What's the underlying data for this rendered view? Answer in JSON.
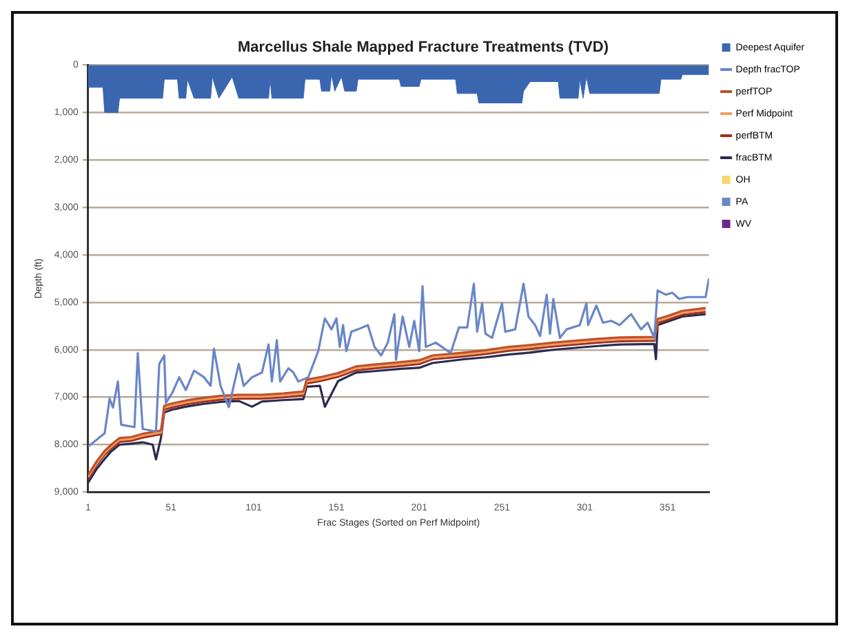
{
  "chart_data": {
    "type": "line",
    "title": "Marcellus Shale Mapped Fracture Treatments (TVD)",
    "xlabel": "Frac Stages (Sorted on Perf Midpoint)",
    "ylabel": "Depth (ft)",
    "xlim": [
      1,
      376
    ],
    "xticks": [
      1,
      51,
      101,
      151,
      201,
      251,
      301,
      351
    ],
    "ylim": [
      9000,
      0
    ],
    "yticks": [
      0,
      {
        "value": 1000,
        "label": "1,000"
      },
      {
        "value": 2000,
        "label": "2,000"
      },
      {
        "value": 3000,
        "label": "3,000"
      },
      {
        "value": 4000,
        "label": "4,000"
      },
      {
        "value": 5000,
        "label": "5,000"
      },
      {
        "value": 6000,
        "label": "6,000"
      },
      {
        "value": 7000,
        "label": "7,000"
      },
      {
        "value": 8000,
        "label": "8,000"
      },
      {
        "value": 9000,
        "label": "9,000"
      }
    ],
    "grid": "y",
    "legend": "right",
    "marker": "none",
    "line_style": "solid",
    "series": [
      {
        "name": "Deepest Aquifer",
        "type": "area",
        "color": "#3a66b0",
        "x": [
          1,
          10,
          11,
          19,
          20,
          46,
          47,
          55,
          56,
          60,
          61,
          65,
          75,
          76,
          80,
          88,
          92,
          110,
          111,
          112,
          131,
          132,
          141,
          142,
          147,
          148,
          150,
          154,
          156,
          163,
          164,
          189,
          190,
          201,
          202,
          223,
          224,
          236,
          237,
          263,
          264,
          268,
          285,
          286,
          297,
          298,
          300,
          302,
          304,
          346,
          347,
          359,
          360,
          376
        ],
        "values": [
          470,
          470,
          1000,
          1000,
          700,
          700,
          300,
          300,
          700,
          700,
          300,
          700,
          700,
          250,
          700,
          250,
          700,
          700,
          300,
          700,
          700,
          300,
          300,
          550,
          550,
          200,
          550,
          250,
          550,
          550,
          300,
          300,
          450,
          450,
          300,
          300,
          600,
          600,
          800,
          800,
          550,
          350,
          350,
          700,
          700,
          300,
          700,
          250,
          600,
          600,
          300,
          300,
          200,
          200
        ]
      },
      {
        "name": "Depth fracTOP",
        "color": "#6a86c8",
        "x": [
          1,
          11,
          14,
          16,
          19,
          21,
          29,
          31,
          34,
          42,
          44,
          47,
          48,
          52,
          56,
          60,
          65,
          71,
          75,
          77,
          81,
          86,
          92,
          95,
          100,
          106,
          110,
          112,
          115,
          117,
          122,
          125,
          128,
          134,
          140,
          144,
          148,
          151,
          153,
          155,
          157,
          160,
          164,
          170,
          174,
          178,
          182,
          186,
          187,
          191,
          195,
          198,
          201,
          203,
          205,
          211,
          220,
          225,
          230,
          234,
          236,
          239,
          241,
          245,
          251,
          253,
          259,
          264,
          267,
          271,
          274,
          278,
          280,
          282,
          286,
          290,
          298,
          302,
          303,
          308,
          312,
          317,
          322,
          329,
          335,
          339,
          343,
          345,
          350,
          354,
          358,
          363,
          374,
          376
        ],
        "values": [
          8040,
          7760,
          7030,
          7220,
          6670,
          7580,
          7630,
          6070,
          7670,
          7720,
          6300,
          6120,
          7120,
          6900,
          6580,
          6850,
          6440,
          6580,
          6760,
          5980,
          6760,
          7210,
          6300,
          6760,
          6580,
          6480,
          5890,
          6670,
          5800,
          6670,
          6390,
          6480,
          6670,
          6580,
          6030,
          5340,
          5570,
          5340,
          5940,
          5480,
          6030,
          5620,
          5570,
          5480,
          5940,
          6120,
          5850,
          5250,
          6210,
          5300,
          5940,
          5390,
          6030,
          4660,
          5940,
          5850,
          6070,
          5530,
          5530,
          4610,
          5620,
          5020,
          5660,
          5750,
          5020,
          5620,
          5570,
          4610,
          5300,
          5480,
          5710,
          4840,
          5660,
          4930,
          5750,
          5570,
          5480,
          5020,
          5480,
          5070,
          5430,
          5390,
          5480,
          5250,
          5570,
          5430,
          5750,
          4750,
          4840,
          4800,
          4930,
          4890,
          4890,
          4500
        ]
      },
      {
        "name": "perfTOP",
        "color": "#c0502a",
        "x": [
          1,
          6,
          11,
          15,
          20,
          27,
          34,
          42,
          45,
          47,
          52,
          60,
          71,
          81,
          92,
          106,
          119,
          131,
          133,
          141,
          152,
          163,
          174,
          190,
          201,
          209,
          228,
          241,
          255,
          268,
          282,
          295,
          309,
          322,
          343,
          345,
          350,
          360,
          374
        ],
        "values": [
          8640,
          8360,
          8130,
          8000,
          7860,
          7840,
          7770,
          7720,
          7700,
          7180,
          7130,
          7070,
          7010,
          6970,
          6950,
          6950,
          6920,
          6880,
          6630,
          6580,
          6490,
          6350,
          6310,
          6260,
          6220,
          6120,
          6060,
          6010,
          5940,
          5900,
          5850,
          5810,
          5770,
          5740,
          5730,
          5350,
          5300,
          5180,
          5120
        ]
      },
      {
        "name": "Perf Midpoint",
        "color": "#f0a060",
        "x": [
          1,
          6,
          11,
          15,
          20,
          27,
          34,
          42,
          45,
          47,
          52,
          60,
          71,
          81,
          92,
          106,
          119,
          131,
          133,
          141,
          152,
          163,
          174,
          190,
          201,
          209,
          228,
          241,
          255,
          268,
          282,
          295,
          309,
          322,
          343,
          345,
          350,
          360,
          374
        ],
        "values": [
          8680,
          8400,
          8170,
          8040,
          7900,
          7880,
          7810,
          7760,
          7740,
          7220,
          7170,
          7110,
          7050,
          7010,
          6990,
          6990,
          6960,
          6920,
          6670,
          6620,
          6530,
          6390,
          6350,
          6300,
          6260,
          6160,
          6100,
          6050,
          5980,
          5940,
          5890,
          5850,
          5810,
          5780,
          5770,
          5390,
          5340,
          5220,
          5160
        ]
      },
      {
        "name": "perfBTM",
        "color": "#a03020",
        "x": [
          1,
          6,
          11,
          15,
          20,
          27,
          34,
          42,
          45,
          47,
          52,
          60,
          71,
          81,
          92,
          106,
          119,
          131,
          133,
          141,
          152,
          163,
          174,
          190,
          201,
          209,
          228,
          241,
          255,
          268,
          282,
          295,
          309,
          322,
          343,
          345,
          350,
          360,
          374
        ],
        "values": [
          8720,
          8440,
          8210,
          8080,
          7940,
          7920,
          7850,
          7800,
          7780,
          7260,
          7210,
          7150,
          7090,
          7050,
          7030,
          7030,
          7000,
          6960,
          6710,
          6660,
          6570,
          6430,
          6390,
          6340,
          6300,
          6200,
          6140,
          6090,
          6020,
          5980,
          5930,
          5890,
          5850,
          5820,
          5810,
          5430,
          5380,
          5260,
          5200
        ]
      },
      {
        "name": "fracBTM",
        "color": "#2a2a50",
        "x": [
          1,
          6,
          11,
          15,
          20,
          27,
          34,
          40,
          42,
          45,
          47,
          52,
          60,
          71,
          81,
          92,
          100,
          106,
          119,
          131,
          133,
          141,
          144,
          152,
          163,
          174,
          190,
          201,
          209,
          228,
          241,
          255,
          268,
          282,
          295,
          309,
          322,
          343,
          344,
          345,
          350,
          360,
          374
        ],
        "values": [
          8800,
          8520,
          8300,
          8140,
          8000,
          7980,
          7950,
          8000,
          8310,
          7860,
          7320,
          7260,
          7200,
          7140,
          7100,
          7080,
          7200,
          7090,
          7060,
          7040,
          6780,
          6760,
          7200,
          6660,
          6480,
          6450,
          6400,
          6380,
          6280,
          6200,
          6160,
          6100,
          6060,
          6000,
          5960,
          5920,
          5890,
          5880,
          6200,
          5480,
          5420,
          5300,
          5250
        ]
      },
      {
        "name": "OH",
        "type": "scatter",
        "color": "#f5d76e"
      },
      {
        "name": "PA",
        "type": "scatter",
        "color": "#6a86c8"
      },
      {
        "name": "WV",
        "type": "scatter",
        "color": "#6a2a8a"
      }
    ]
  }
}
